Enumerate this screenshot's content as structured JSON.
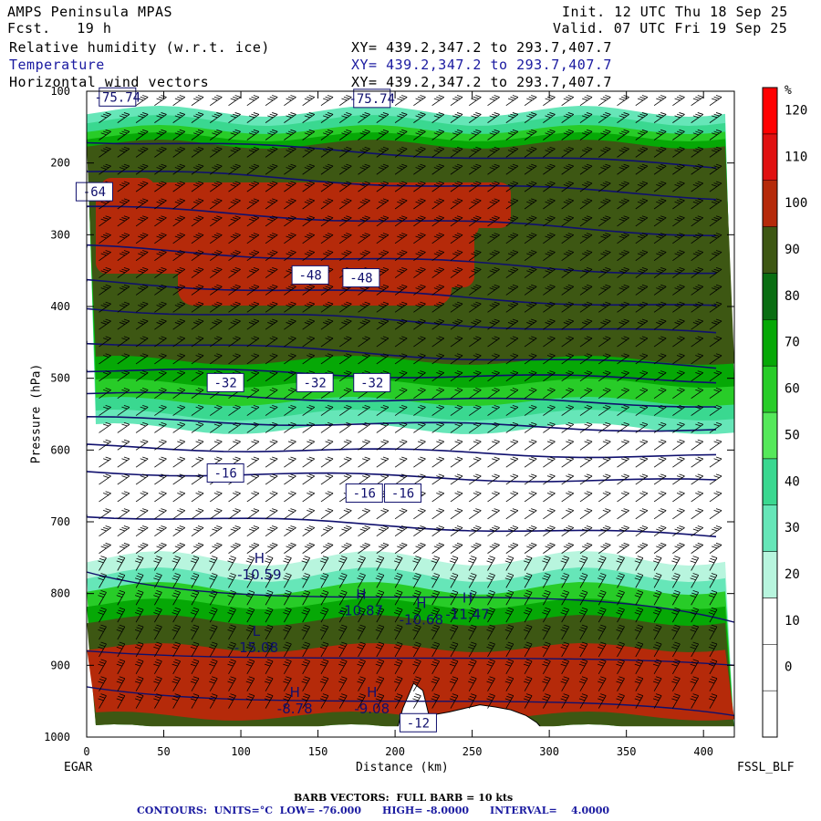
{
  "header": {
    "model": "AMPS Peninsula MPAS",
    "forecast": "Fcst.   19 h",
    "init": "Init. 12 UTC Thu 18 Sep 25",
    "valid": "Valid. 07 UTC Fri 19 Sep 25",
    "fields": [
      {
        "name": "Relative humidity (w.r.t. ice)",
        "xy": "XY= 439.2,347.2 to 293.7,407.7",
        "color": "#000000"
      },
      {
        "name": "Temperature",
        "xy": "XY= 439.2,347.2 to 293.7,407.7",
        "color": "#1a1aa0"
      },
      {
        "name": "Horizontal wind vectors",
        "xy": "XY= 439.2,347.2 to 293.7,407.7",
        "color": "#000000"
      }
    ]
  },
  "footer": {
    "left_station": "EGAR",
    "right_station": "FSSL_BLF",
    "barb_note": "BARB VECTORS:  FULL BARB = 10 kts",
    "contour_note": "CONTOURS:  UNITS=°C  LOW= -76.000      HIGH= -8.0000      INTERVAL=    4.0000"
  },
  "chart_data": {
    "type": "heatmap",
    "xlabel": "Distance (km)",
    "ylabel": "Pressure (hPa)",
    "xlim": [
      0,
      420
    ],
    "ylim": [
      1000,
      100
    ],
    "x_ticks": [
      0,
      50,
      100,
      150,
      200,
      250,
      300,
      350,
      400
    ],
    "y_ticks": [
      100,
      200,
      300,
      400,
      500,
      600,
      700,
      800,
      900,
      1000
    ],
    "colorbar": {
      "unit": "%",
      "levels": [
        0,
        10,
        20,
        30,
        40,
        50,
        60,
        70,
        80,
        90,
        100,
        110,
        120
      ],
      "colors": [
        "#ffffff",
        "#ffffff",
        "#ffffff",
        "#b8f5de",
        "#66e6b8",
        "#3ad890",
        "#55e85a",
        "#28cc28",
        "#06a806",
        "#0a6e12",
        "#3d5713",
        "#b52a0a",
        "#e01010",
        "#ff0000"
      ]
    },
    "temperature_labels": [
      {
        "text": "-75.74",
        "x": 20,
        "p": 108
      },
      {
        "text": "-75.74",
        "x": 185,
        "p": 110
      },
      {
        "text": "-64",
        "x": 5,
        "p": 240
      },
      {
        "text": "-48",
        "x": 145,
        "p": 356
      },
      {
        "text": "-48",
        "x": 178,
        "p": 360
      },
      {
        "text": "-32",
        "x": 90,
        "p": 506
      },
      {
        "text": "-32",
        "x": 148,
        "p": 506
      },
      {
        "text": "-32",
        "x": 185,
        "p": 506
      },
      {
        "text": "-16",
        "x": 90,
        "p": 632
      },
      {
        "text": "-16",
        "x": 180,
        "p": 660
      },
      {
        "text": "-16",
        "x": 205,
        "p": 660
      },
      {
        "text": "-12",
        "x": 215,
        "p": 980
      }
    ],
    "extrema": [
      {
        "kind": "H",
        "value": "-10.59",
        "x": 112,
        "p": 775
      },
      {
        "kind": "H",
        "value": "-10.87",
        "x": 178,
        "p": 825
      },
      {
        "kind": "H",
        "value": "-10.68",
        "x": 217,
        "p": 838
      },
      {
        "kind": "H",
        "value": "-11.47",
        "x": 247,
        "p": 830
      },
      {
        "kind": "L",
        "value": "-15.08",
        "x": 110,
        "p": 877
      },
      {
        "kind": "H",
        "value": "-8.78",
        "x": 135,
        "p": 962
      },
      {
        "kind": "H",
        "value": "-9.08",
        "x": 185,
        "p": 962
      }
    ],
    "isotherms_hPa_at_0km": [
      168,
      210,
      262,
      318,
      365,
      402,
      448,
      488,
      522,
      557,
      595,
      630,
      690
    ]
  }
}
